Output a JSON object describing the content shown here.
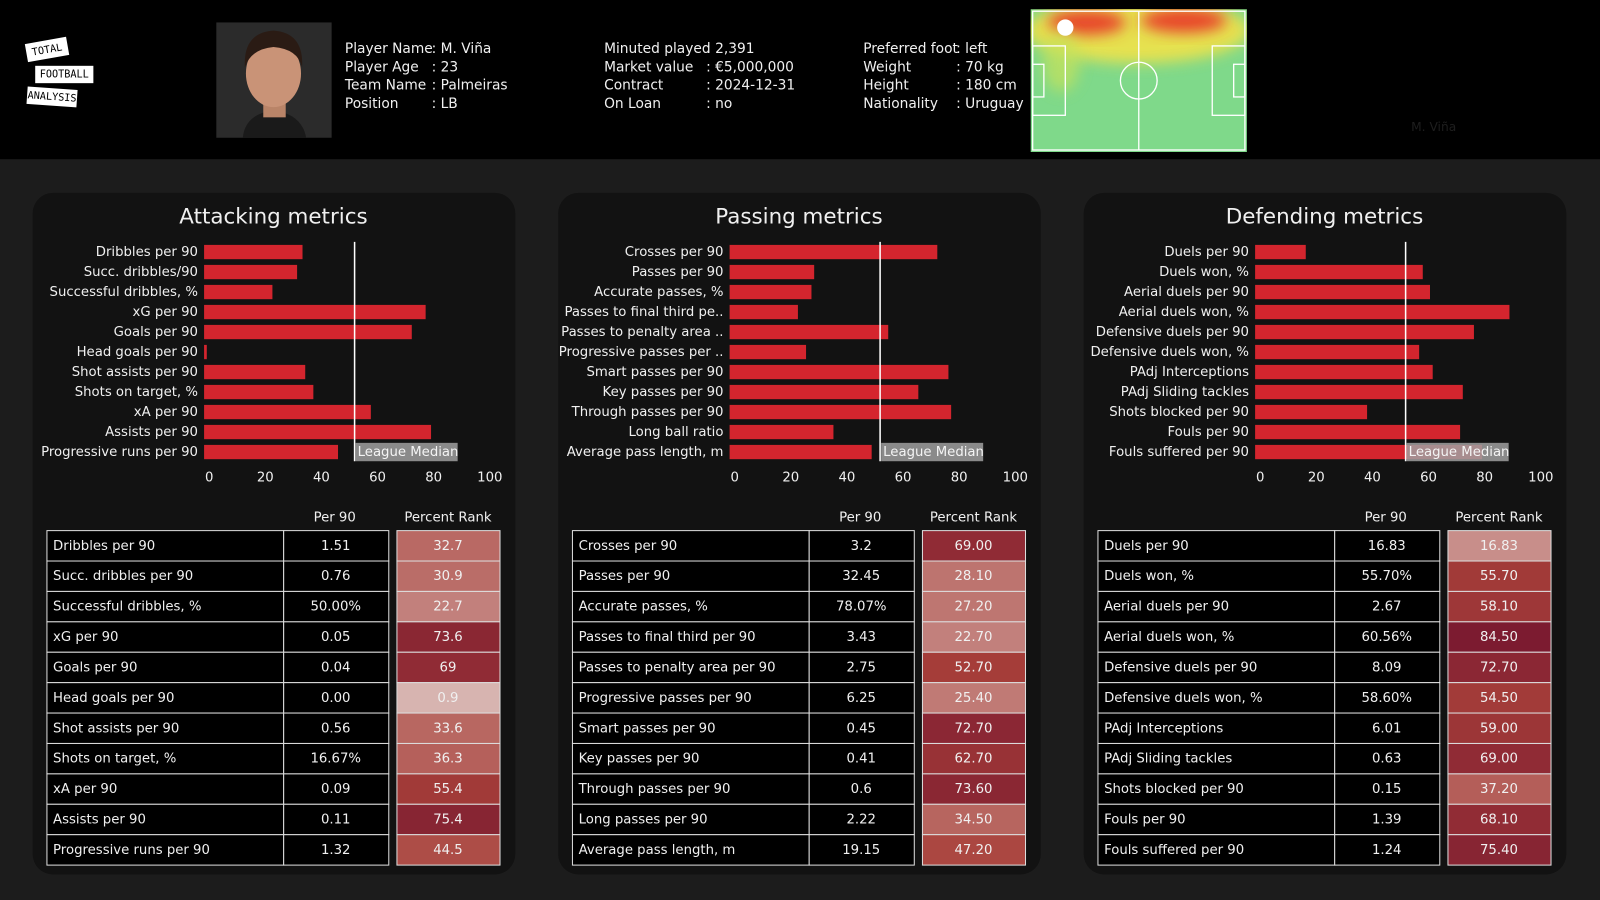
{
  "header": {
    "logo": [
      "TOTAL",
      "FOOTBALL",
      "ANALYSIS"
    ],
    "info": [
      [
        {
          "label": "Player Name",
          "value": ": M. Viña"
        },
        {
          "label": "Player Age",
          "value": ": 23"
        },
        {
          "label": "Team Name",
          "value": ": Palmeiras"
        },
        {
          "label": "Position",
          "value": ": LB"
        }
      ],
      [
        {
          "label": "Minuted played",
          "value": ": 2,391"
        },
        {
          "label": "Market value",
          "value": ": €5,000,000"
        },
        {
          "label": "Contract",
          "value": ": 2024-12-31"
        },
        {
          "label": "On Loan",
          "value": ": no"
        }
      ],
      [
        {
          "label": "Preferred foot",
          "value": ": left"
        },
        {
          "label": "Weight",
          "value": ": 70 kg"
        },
        {
          "label": "Height",
          "value": ": 180 cm"
        },
        {
          "label": "Nationality",
          "value": ": Uruguay"
        }
      ]
    ],
    "heatmap_label": "M. Viña"
  },
  "chart_data": [
    {
      "type": "bar",
      "title": "Attacking metrics",
      "color": "#d4252e",
      "categories": [
        "Dribbles per 90",
        "Succ. dribbles/90",
        "Successful dribbles, %",
        "xG per 90",
        "Goals per 90",
        "Head goals per 90",
        "Shot assists per 90",
        "Shots on target, %",
        "xA per 90",
        "Assists per 90",
        "Progressive runs per 90"
      ],
      "values": [
        32.7,
        30.9,
        22.7,
        73.6,
        69,
        0.9,
        33.6,
        36.3,
        55.4,
        75.4,
        44.5
      ],
      "xlim": [
        0,
        100
      ],
      "xticks": [
        0,
        20,
        40,
        60,
        80,
        100
      ],
      "median": {
        "value": 50,
        "label": "League Median"
      }
    },
    {
      "type": "bar",
      "title": "Passing metrics",
      "color": "#d4252e",
      "categories": [
        "Crosses per 90",
        "Passes per 90",
        "Accurate passes, %",
        "Passes to final third pe..",
        "Passes to penalty area ..",
        "Progressive passes per ..",
        "Smart passes per 90",
        "Key passes per 90",
        "Through passes per 90",
        "Long ball ratio",
        "Average pass length, m"
      ],
      "values": [
        69,
        28.1,
        27.2,
        22.7,
        52.7,
        25.4,
        72.7,
        62.7,
        73.6,
        34.5,
        47.2
      ],
      "value_labels": [
        "69.00",
        "28.10",
        "27.20",
        "22.70",
        "52.70",
        "25.40",
        "72.70",
        "62.70",
        "73.60",
        "34.50",
        "47.20"
      ],
      "xlim": [
        0,
        100
      ],
      "xticks": [
        0,
        20,
        40,
        60,
        80,
        100
      ],
      "median": {
        "value": 50,
        "label": "League Median"
      }
    },
    {
      "type": "bar",
      "title": "Defending metrics",
      "color": "#d4252e",
      "categories": [
        "Duels per 90",
        "Duels won, %",
        "Aerial duels per 90",
        "Aerial duels won, %",
        "Defensive duels per 90",
        "Defensive duels won, %",
        "PAdj Interceptions",
        "PAdj Sliding tackles",
        "Shots blocked per 90",
        "Fouls per 90",
        "Fouls suffered per 90"
      ],
      "values": [
        16.83,
        55.7,
        58.1,
        84.5,
        72.7,
        54.5,
        59,
        69,
        37.2,
        68.1,
        75.4
      ],
      "value_labels": [
        "16.83",
        "55.70",
        "58.10",
        "84.50",
        "72.70",
        "54.50",
        "59.00",
        "69.00",
        "37.20",
        "68.10",
        "75.40"
      ],
      "xlim": [
        0,
        100
      ],
      "xticks": [
        0,
        20,
        40,
        60,
        80,
        100
      ],
      "median": {
        "value": 50,
        "label": "League Median"
      }
    }
  ],
  "tables": [
    {
      "columns": [
        "Per 90",
        "Percent Rank"
      ],
      "rows": [
        [
          "Dribbles per 90",
          "1.51"
        ],
        [
          "Succ. dribbles per 90",
          "0.76"
        ],
        [
          "Successful dribbles, %",
          "50.00%"
        ],
        [
          "xG per 90",
          "0.05"
        ],
        [
          "Goals per 90",
          "0.04"
        ],
        [
          "Head goals per 90",
          "0.00"
        ],
        [
          "Shot assists per 90",
          "0.56"
        ],
        [
          "Shots on target, %",
          "16.67%"
        ],
        [
          "xA per 90",
          "0.09"
        ],
        [
          "Assists per 90",
          "0.11"
        ],
        [
          "Progressive runs per 90",
          "1.32"
        ]
      ]
    },
    {
      "columns": [
        "Per 90",
        "Percent Rank"
      ],
      "rows": [
        [
          "Crosses per 90",
          "3.2"
        ],
        [
          "Passes per 90",
          "32.45"
        ],
        [
          "Accurate passes, %",
          "78.07%"
        ],
        [
          "Passes to final third per 90",
          "3.43"
        ],
        [
          "Passes to penalty area per 90",
          "2.75"
        ],
        [
          "Progressive passes per 90",
          "6.25"
        ],
        [
          "Smart passes per 90",
          "0.45"
        ],
        [
          "Key passes per 90",
          "0.41"
        ],
        [
          "Through passes per 90",
          "0.6"
        ],
        [
          "Long passes per 90",
          "2.22"
        ],
        [
          "Average pass length, m",
          "19.15"
        ]
      ]
    },
    {
      "columns": [
        "Per 90",
        "Percent Rank"
      ],
      "rows": [
        [
          "Duels per 90",
          "16.83"
        ],
        [
          "Duels won, %",
          "55.70%"
        ],
        [
          "Aerial duels per 90",
          "2.67"
        ],
        [
          "Aerial duels won, %",
          "60.56%"
        ],
        [
          "Defensive duels per 90",
          "8.09"
        ],
        [
          "Defensive duels won, %",
          "58.60%"
        ],
        [
          "PAdj Interceptions",
          "6.01"
        ],
        [
          "PAdj Sliding tackles",
          "0.63"
        ],
        [
          "Shots blocked per 90",
          "0.15"
        ],
        [
          "Fouls per 90",
          "1.39"
        ],
        [
          "Fouls suffered per 90",
          "1.24"
        ]
      ]
    }
  ]
}
